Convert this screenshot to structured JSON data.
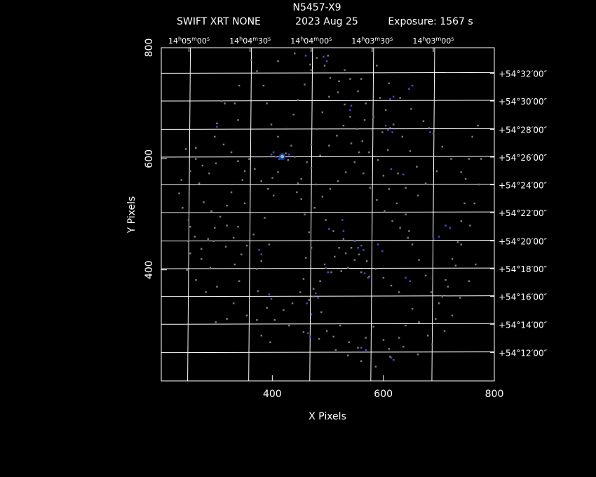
{
  "header": {
    "object": "N5457-X9",
    "instrument": "SWIFT XRT NONE",
    "date": "2023 Aug 25",
    "exposure": "Exposure: 1567 s"
  },
  "chart_data": {
    "type": "scatter",
    "xlabel": "X Pixels",
    "ylabel": "Y Pixels",
    "xlim": [
      200,
      800
    ],
    "ylim": [
      200,
      800
    ],
    "x_ticks": [
      {
        "value": 400,
        "label": "400"
      },
      {
        "value": 600,
        "label": "600"
      },
      {
        "value": 800,
        "label": "800"
      }
    ],
    "y_ticks": [
      {
        "value": 400,
        "label": "400"
      },
      {
        "value": 600,
        "label": "600"
      },
      {
        "value": 800,
        "label": "800"
      }
    ],
    "ra_ticks": [
      {
        "x": 250,
        "h": "14",
        "m": "05",
        "s": "00"
      },
      {
        "x": 360,
        "h": "14",
        "m": "04",
        "s": "30"
      },
      {
        "x": 470,
        "h": "14",
        "m": "04",
        "s": "00"
      },
      {
        "x": 580,
        "h": "14",
        "m": "03",
        "s": "30"
      },
      {
        "x": 690,
        "h": "14",
        "m": "03",
        "s": "00"
      }
    ],
    "dec_ticks": [
      {
        "y": 754,
        "label": "+54°32′00″"
      },
      {
        "y": 704,
        "label": "+54°30′00″"
      },
      {
        "y": 653,
        "label": "+54°28′00″"
      },
      {
        "y": 603,
        "label": "+54°26′00″"
      },
      {
        "y": 553,
        "label": "+54°24′00″"
      },
      {
        "y": 503,
        "label": "+54°22′00″"
      },
      {
        "y": 452,
        "label": "+54°20′00″"
      },
      {
        "y": 402,
        "label": "+54°18′00″"
      },
      {
        "y": 352,
        "label": "+54°16′00″"
      },
      {
        "y": 302,
        "label": "+54°14′00″"
      },
      {
        "y": 251,
        "label": "+54°12′00″"
      }
    ],
    "ra_grid_x": [
      250,
      360,
      470,
      580,
      690
    ],
    "dec_grid_y": [
      754,
      704,
      653,
      603,
      553,
      503,
      452,
      402,
      352,
      302,
      251
    ],
    "colors": {
      "background": "#000000",
      "frame": "#ffffff",
      "grid": "#ffffff",
      "faint_event": "#7a7a7a",
      "medium_event": "#4a4ac8",
      "bright_source": "#40e0d0"
    },
    "bright_source": {
      "x": 418,
      "y": 604
    },
    "events": [
      [
        244,
        618
      ],
      [
        236,
        562
      ],
      [
        232,
        538
      ],
      [
        238,
        512
      ],
      [
        249,
        490
      ],
      [
        248,
        452
      ],
      [
        246,
        400
      ],
      [
        262,
        620
      ],
      [
        268,
        556
      ],
      [
        276,
        522
      ],
      [
        290,
        506
      ],
      [
        294,
        452
      ],
      [
        296,
        640
      ],
      [
        300,
        664
      ],
      [
        308,
        704
      ],
      [
        314,
        700
      ],
      [
        318,
        516
      ],
      [
        326,
        540
      ],
      [
        332,
        700
      ],
      [
        338,
        670
      ],
      [
        340,
        732
      ],
      [
        346,
        562
      ],
      [
        350,
        520
      ],
      [
        338,
        478
      ],
      [
        316,
        442
      ],
      [
        332,
        410
      ],
      [
        340,
        380
      ],
      [
        330,
        340
      ],
      [
        318,
        312
      ],
      [
        298,
        306
      ],
      [
        300,
        370
      ],
      [
        280,
        360
      ],
      [
        262,
        382
      ],
      [
        252,
        430
      ],
      [
        272,
        420
      ],
      [
        288,
        404
      ],
      [
        354,
        318
      ],
      [
        372,
        310
      ],
      [
        380,
        282
      ],
      [
        396,
        270
      ],
      [
        390,
        332
      ],
      [
        374,
        362
      ],
      [
        372,
        402
      ],
      [
        380,
        416
      ],
      [
        394,
        446
      ],
      [
        386,
        494
      ],
      [
        402,
        534
      ],
      [
        400,
        566
      ],
      [
        410,
        576
      ],
      [
        418,
        604
      ],
      [
        424,
        610
      ],
      [
        428,
        598
      ],
      [
        434,
        624
      ],
      [
        440,
        604
      ],
      [
        446,
        556
      ],
      [
        452,
        528
      ],
      [
        458,
        500
      ],
      [
        466,
        468
      ],
      [
        470,
        440
      ],
      [
        460,
        422
      ],
      [
        456,
        384
      ],
      [
        474,
        352
      ],
      [
        488,
        324
      ],
      [
        498,
        290
      ],
      [
        510,
        280
      ],
      [
        522,
        300
      ],
      [
        538,
        270
      ],
      [
        554,
        260
      ],
      [
        568,
        278
      ],
      [
        582,
        298
      ],
      [
        600,
        274
      ],
      [
        610,
        258
      ],
      [
        628,
        278
      ],
      [
        640,
        300
      ],
      [
        652,
        330
      ],
      [
        664,
        306
      ],
      [
        680,
        282
      ],
      [
        694,
        312
      ],
      [
        706,
        352
      ],
      [
        712,
        382
      ],
      [
        724,
        420
      ],
      [
        734,
        450
      ],
      [
        740,
        488
      ],
      [
        746,
        520
      ],
      [
        748,
        564
      ],
      [
        754,
        600
      ],
      [
        760,
        640
      ],
      [
        770,
        660
      ],
      [
        776,
        600
      ],
      [
        772,
        554
      ],
      [
        764,
        520
      ],
      [
        756,
        480
      ],
      [
        740,
        446
      ],
      [
        730,
        408
      ],
      [
        716,
        370
      ],
      [
        700,
        340
      ],
      [
        686,
        360
      ],
      [
        676,
        390
      ],
      [
        664,
        418
      ],
      [
        652,
        446
      ],
      [
        646,
        470
      ],
      [
        640,
        500
      ],
      [
        624,
        520
      ],
      [
        610,
        546
      ],
      [
        600,
        570
      ],
      [
        590,
        598
      ],
      [
        574,
        612
      ],
      [
        562,
        632
      ],
      [
        552,
        654
      ],
      [
        540,
        676
      ],
      [
        530,
        698
      ],
      [
        518,
        720
      ],
      [
        504,
        746
      ],
      [
        494,
        768
      ],
      [
        480,
        782
      ],
      [
        470,
        760
      ],
      [
        458,
        734
      ],
      [
        446,
        706
      ],
      [
        438,
        680
      ],
      [
        426,
        654
      ],
      [
        410,
        640
      ],
      [
        398,
        662
      ],
      [
        390,
        700
      ],
      [
        384,
        732
      ],
      [
        372,
        758
      ],
      [
        362,
        778
      ],
      [
        410,
        776
      ],
      [
        440,
        790
      ],
      [
        468,
        770
      ],
      [
        500,
        786
      ],
      [
        530,
        760
      ],
      [
        560,
        744
      ],
      [
        588,
        768
      ],
      [
        610,
        736
      ],
      [
        630,
        710
      ],
      [
        650,
        690
      ],
      [
        672,
        668
      ],
      [
        690,
        646
      ],
      [
        706,
        622
      ],
      [
        722,
        600
      ],
      [
        740,
        576
      ],
      [
        696,
        578
      ],
      [
        676,
        556
      ],
      [
        662,
        534
      ],
      [
        640,
        548
      ],
      [
        626,
        574
      ],
      [
        608,
        616
      ],
      [
        598,
        648
      ],
      [
        582,
        676
      ],
      [
        568,
        700
      ],
      [
        554,
        722
      ],
      [
        540,
        744
      ],
      [
        520,
        740
      ],
      [
        502,
        712
      ],
      [
        490,
        684
      ],
      [
        480,
        654
      ],
      [
        470,
        626
      ],
      [
        462,
        594
      ],
      [
        452,
        564
      ],
      [
        444,
        540
      ],
      [
        476,
        512
      ],
      [
        496,
        490
      ],
      [
        510,
        470
      ],
      [
        528,
        456
      ],
      [
        542,
        440
      ],
      [
        556,
        428
      ],
      [
        570,
        416
      ],
      [
        586,
        402
      ],
      [
        600,
        386
      ],
      [
        614,
        372
      ],
      [
        628,
        360
      ],
      [
        520,
        440
      ],
      [
        532,
        430
      ],
      [
        512,
        424
      ],
      [
        548,
        418
      ],
      [
        536,
        404
      ],
      [
        524,
        398
      ],
      [
        560,
        396
      ],
      [
        574,
        388
      ],
      [
        506,
        396
      ],
      [
        494,
        410
      ],
      [
        486,
        380
      ],
      [
        474,
        366
      ],
      [
        466,
        346
      ],
      [
        450,
        360
      ],
      [
        436,
        340
      ],
      [
        420,
        328
      ],
      [
        404,
        310
      ],
      [
        430,
        300
      ],
      [
        456,
        288
      ],
      [
        484,
        276
      ],
      [
        514,
        256
      ],
      [
        536,
        246
      ],
      [
        560,
        236
      ],
      [
        586,
        226
      ],
      [
        612,
        244
      ],
      [
        636,
        262
      ],
      [
        662,
        248
      ],
      [
        688,
        266
      ],
      [
        710,
        290
      ],
      [
        724,
        318
      ],
      [
        738,
        350
      ],
      [
        754,
        380
      ],
      [
        766,
        410
      ],
      [
        660,
        586
      ],
      [
        648,
        614
      ],
      [
        634,
        640
      ],
      [
        618,
        662
      ],
      [
        604,
        688
      ],
      [
        594,
        710
      ],
      [
        580,
        652
      ],
      [
        566,
        670
      ],
      [
        548,
        594
      ],
      [
        532,
        576
      ],
      [
        518,
        560
      ],
      [
        504,
        546
      ],
      [
        490,
        532
      ],
      [
        478,
        554
      ],
      [
        470,
        584
      ],
      [
        486,
        606
      ],
      [
        502,
        624
      ],
      [
        516,
        642
      ],
      [
        528,
        660
      ],
      [
        542,
        628
      ],
      [
        556,
        612
      ],
      [
        564,
        574
      ],
      [
        576,
        548
      ],
      [
        588,
        526
      ],
      [
        602,
        506
      ],
      [
        616,
        488
      ],
      [
        630,
        476
      ],
      [
        644,
        458
      ],
      [
        358,
        600
      ],
      [
        368,
        582
      ],
      [
        380,
        560
      ],
      [
        392,
        546
      ],
      [
        350,
        578
      ],
      [
        338,
        596
      ],
      [
        326,
        612
      ],
      [
        312,
        626
      ],
      [
        298,
        592
      ],
      [
        286,
        574
      ],
      [
        274,
        588
      ],
      [
        262,
        600
      ],
      [
        252,
        578
      ],
      [
        366,
        464
      ],
      [
        354,
        444
      ],
      [
        344,
        428
      ],
      [
        330,
        458
      ],
      [
        318,
        480
      ],
      [
        306,
        496
      ],
      [
        296,
        476
      ],
      [
        284,
        456
      ],
      [
        272,
        438
      ],
      [
        260,
        460
      ],
      [
        252,
        478
      ]
    ],
    "medium_events": [
      [
        300,
        658
      ],
      [
        398,
        608
      ],
      [
        402,
        612
      ],
      [
        406,
        604
      ],
      [
        412,
        600
      ],
      [
        430,
        608
      ],
      [
        460,
        786
      ],
      [
        492,
        784
      ],
      [
        498,
        776
      ],
      [
        542,
        696
      ],
      [
        540,
        688
      ],
      [
        608,
        652
      ],
      [
        612,
        656
      ],
      [
        616,
        648
      ],
      [
        604,
        660
      ],
      [
        612,
        708
      ],
      [
        618,
        712
      ],
      [
        682,
        656
      ],
      [
        684,
        648
      ],
      [
        614,
        582
      ],
      [
        636,
        572
      ],
      [
        560,
        444
      ],
      [
        554,
        440
      ],
      [
        548,
        452
      ],
      [
        564,
        436
      ],
      [
        526,
        490
      ],
      [
        502,
        474
      ],
      [
        496,
        404
      ],
      [
        500,
        396
      ],
      [
        482,
        350
      ],
      [
        478,
        358
      ],
      [
        462,
        340
      ],
      [
        470,
        320
      ],
      [
        376,
        436
      ],
      [
        380,
        428
      ],
      [
        394,
        356
      ],
      [
        398,
        348
      ],
      [
        464,
        286
      ],
      [
        468,
        280
      ],
      [
        618,
        238
      ],
      [
        614,
        242
      ],
      [
        640,
        386
      ],
      [
        648,
        380
      ],
      [
        690,
        456
      ],
      [
        700,
        460
      ],
      [
        712,
        480
      ],
      [
        720,
        476
      ],
      [
        598,
        434
      ],
      [
        590,
        446
      ],
      [
        560,
        260
      ],
      [
        568,
        256
      ],
      [
        646,
        726
      ],
      [
        652,
        732
      ],
      [
        566,
        394
      ],
      [
        572,
        386
      ],
      [
        528,
        470
      ]
    ]
  }
}
